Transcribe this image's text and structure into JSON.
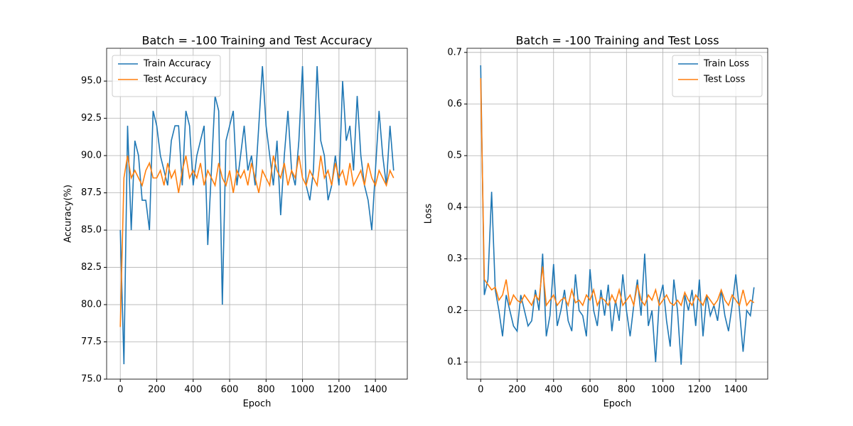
{
  "chart_data": [
    {
      "type": "line",
      "title": "Batch = -100 Training and Test Accuracy",
      "xlabel": "Epoch",
      "ylabel": "Accuracy(%)",
      "x": [
        0,
        20,
        40,
        60,
        80,
        100,
        120,
        140,
        160,
        180,
        200,
        220,
        240,
        260,
        280,
        300,
        320,
        340,
        360,
        380,
        400,
        420,
        440,
        460,
        480,
        500,
        520,
        540,
        560,
        580,
        600,
        620,
        640,
        660,
        680,
        700,
        720,
        740,
        760,
        780,
        800,
        820,
        840,
        860,
        880,
        900,
        920,
        940,
        960,
        980,
        1000,
        1020,
        1040,
        1060,
        1080,
        1100,
        1120,
        1140,
        1160,
        1180,
        1200,
        1220,
        1240,
        1260,
        1280,
        1300,
        1320,
        1340,
        1360,
        1380,
        1400,
        1420,
        1440,
        1460,
        1480,
        1500
      ],
      "series": [
        {
          "name": "Train Accuracy",
          "color": "#1f77b4",
          "values": [
            85,
            76,
            92,
            85,
            91,
            90,
            87,
            87,
            85,
            93,
            92,
            90,
            89,
            88,
            91,
            92,
            92,
            88,
            93,
            92,
            88,
            90,
            91,
            92,
            84,
            89,
            94,
            93,
            80,
            91,
            92,
            93,
            88,
            90,
            92,
            89,
            90,
            88,
            92,
            96,
            92,
            90,
            88,
            91,
            86,
            90,
            93,
            89,
            88,
            91,
            96,
            88,
            87,
            89,
            96,
            91,
            90,
            87,
            88,
            90,
            88,
            95,
            91,
            92,
            89,
            94,
            90,
            88,
            87,
            85,
            89,
            93,
            90,
            88,
            92,
            89
          ]
        },
        {
          "name": "Test Accuracy",
          "color": "#ff7f0e",
          "values": [
            78.5,
            88.5,
            90,
            88.5,
            89,
            88.5,
            88,
            89,
            89.5,
            88.5,
            88.5,
            89,
            88,
            89.5,
            88.5,
            89,
            87.5,
            89,
            90,
            88.5,
            89,
            88.5,
            89.5,
            88,
            89,
            88.5,
            88,
            89.5,
            88.5,
            88,
            89,
            87.5,
            89,
            88.5,
            89,
            88,
            89.5,
            88.5,
            87.5,
            89,
            88.5,
            88,
            90,
            89,
            88.5,
            89.5,
            88,
            89,
            88.5,
            90,
            88.5,
            88,
            89,
            88.5,
            88,
            90,
            88.5,
            89,
            88,
            89.5,
            88.5,
            89,
            88,
            89.5,
            88,
            88.5,
            89,
            88,
            89.5,
            88.5,
            88,
            89,
            88.5,
            88,
            89,
            88.5
          ]
        }
      ],
      "xlim": [
        -75,
        1575
      ],
      "xticks": [
        0,
        200,
        400,
        600,
        800,
        1000,
        1200,
        1400
      ],
      "ylim": [
        75,
        97.2
      ],
      "yticks": [
        {
          "value": 75,
          "label": "75.0"
        },
        {
          "value": 77.5,
          "label": "77.5"
        },
        {
          "value": 80,
          "label": "80.0"
        },
        {
          "value": 82.5,
          "label": "82.5"
        },
        {
          "value": 85,
          "label": "85.0"
        },
        {
          "value": 87.5,
          "label": "87.5"
        },
        {
          "value": 90,
          "label": "90.0"
        },
        {
          "value": 92.5,
          "label": "92.5"
        },
        {
          "value": 95,
          "label": "95.0"
        }
      ],
      "grid": true,
      "legend": "upper left"
    },
    {
      "type": "line",
      "title": "Batch = -100 Training and Test Loss",
      "xlabel": "Epoch",
      "ylabel": "Loss",
      "x": [
        0,
        20,
        40,
        60,
        80,
        100,
        120,
        140,
        160,
        180,
        200,
        220,
        240,
        260,
        280,
        300,
        320,
        340,
        360,
        380,
        400,
        420,
        440,
        460,
        480,
        500,
        520,
        540,
        560,
        580,
        600,
        620,
        640,
        660,
        680,
        700,
        720,
        740,
        760,
        780,
        800,
        820,
        840,
        860,
        880,
        900,
        920,
        940,
        960,
        980,
        1000,
        1020,
        1040,
        1060,
        1080,
        1100,
        1120,
        1140,
        1160,
        1180,
        1200,
        1220,
        1240,
        1260,
        1280,
        1300,
        1320,
        1340,
        1360,
        1380,
        1400,
        1420,
        1440,
        1460,
        1480,
        1500
      ],
      "series": [
        {
          "name": "Train Loss",
          "color": "#1f77b4",
          "values": [
            0.675,
            0.23,
            0.26,
            0.43,
            0.24,
            0.2,
            0.15,
            0.23,
            0.2,
            0.17,
            0.16,
            0.23,
            0.2,
            0.17,
            0.18,
            0.24,
            0.2,
            0.31,
            0.15,
            0.19,
            0.29,
            0.17,
            0.2,
            0.24,
            0.18,
            0.16,
            0.27,
            0.2,
            0.19,
            0.15,
            0.28,
            0.2,
            0.17,
            0.24,
            0.19,
            0.25,
            0.16,
            0.22,
            0.18,
            0.27,
            0.2,
            0.15,
            0.21,
            0.26,
            0.19,
            0.31,
            0.17,
            0.2,
            0.1,
            0.22,
            0.25,
            0.18,
            0.13,
            0.26,
            0.2,
            0.095,
            0.23,
            0.2,
            0.24,
            0.17,
            0.26,
            0.15,
            0.23,
            0.19,
            0.21,
            0.18,
            0.24,
            0.19,
            0.16,
            0.21,
            0.27,
            0.2,
            0.12,
            0.2,
            0.19,
            0.245
          ]
        },
        {
          "name": "Test Loss",
          "color": "#ff7f0e",
          "values": [
            0.65,
            0.26,
            0.25,
            0.24,
            0.245,
            0.22,
            0.23,
            0.26,
            0.21,
            0.23,
            0.22,
            0.215,
            0.23,
            0.22,
            0.21,
            0.23,
            0.22,
            0.285,
            0.21,
            0.22,
            0.23,
            0.21,
            0.22,
            0.225,
            0.21,
            0.24,
            0.215,
            0.22,
            0.21,
            0.23,
            0.22,
            0.24,
            0.21,
            0.225,
            0.22,
            0.21,
            0.23,
            0.215,
            0.24,
            0.21,
            0.22,
            0.23,
            0.21,
            0.25,
            0.22,
            0.21,
            0.23,
            0.22,
            0.24,
            0.21,
            0.22,
            0.23,
            0.215,
            0.21,
            0.22,
            0.21,
            0.235,
            0.22,
            0.21,
            0.23,
            0.22,
            0.21,
            0.23,
            0.22,
            0.21,
            0.22,
            0.24,
            0.22,
            0.21,
            0.23,
            0.22,
            0.21,
            0.24,
            0.21,
            0.22,
            0.215
          ]
        }
      ],
      "xlim": [
        -75,
        1575
      ],
      "xticks": [
        0,
        200,
        400,
        600,
        800,
        1000,
        1200,
        1400
      ],
      "ylim": [
        0.067,
        0.708
      ],
      "yticks": [
        0.1,
        0.2,
        0.3,
        0.4,
        0.5,
        0.6,
        0.7
      ],
      "grid": true,
      "legend": "upper right"
    }
  ]
}
